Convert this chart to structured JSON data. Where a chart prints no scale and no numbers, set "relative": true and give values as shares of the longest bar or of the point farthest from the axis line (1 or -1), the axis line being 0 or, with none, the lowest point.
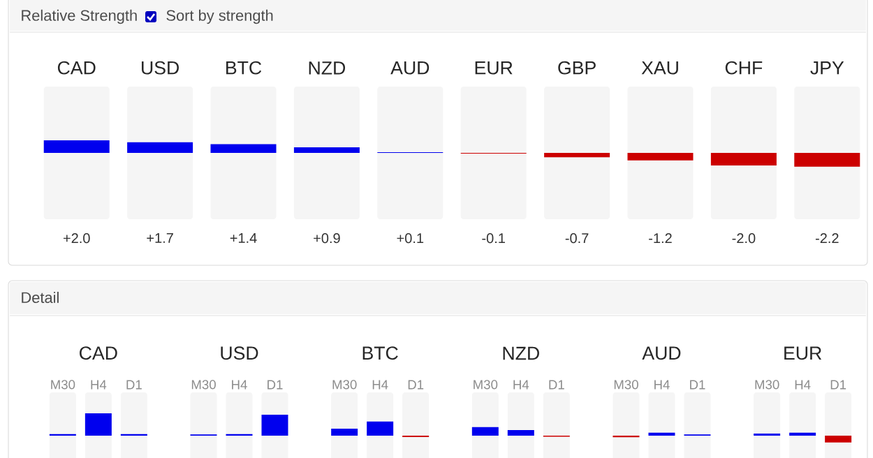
{
  "chart_data": [
    {
      "type": "bar",
      "title": "Relative Strength",
      "annotations": [
        "Sort by strength"
      ],
      "categories": [
        "CAD",
        "USD",
        "BTC",
        "NZD",
        "AUD",
        "EUR",
        "GBP",
        "XAU",
        "CHF",
        "JPY"
      ],
      "values": [
        2.0,
        1.7,
        1.4,
        0.9,
        0.1,
        -0.1,
        -0.7,
        -1.2,
        -2.0,
        -2.2
      ],
      "colors": [
        "#0000ee",
        "#0000ee",
        "#0000ee",
        "#0000ee",
        "#0000ee",
        "#cc0000",
        "#cc0000",
        "#cc0000",
        "#cc0000",
        "#cc0000"
      ],
      "value_labels": [
        "+2.0",
        "+1.7",
        "+1.4",
        "+0.9",
        "+0.1",
        "-0.1",
        "-0.7",
        "-1.2",
        "-2.0",
        "-2.2"
      ]
    },
    {
      "type": "bar",
      "title": "Detail",
      "relative": true,
      "categories": [
        "CAD",
        "USD",
        "BTC",
        "NZD",
        "AUD",
        "EUR"
      ],
      "series": [
        {
          "name": "M30",
          "colors": [
            "#0000ee",
            "#0000ee",
            "#0000ee",
            "#0000ee",
            "#cc0000",
            "#0000ee"
          ],
          "values": [
            0.07,
            0.05,
            0.31,
            0.38,
            -0.07,
            0.09
          ]
        },
        {
          "name": "H4",
          "colors": [
            "#0000ee",
            "#0000ee",
            "#0000ee",
            "#0000ee",
            "#0000ee",
            "#0000ee"
          ],
          "values": [
            1,
            0.07,
            0.63,
            0.25,
            0.13,
            0.13
          ]
        },
        {
          "name": "D1",
          "colors": [
            "#0000ee",
            "#0000ee",
            "#cc0000",
            "#cc0000",
            "#0000ee",
            "#cc0000"
          ],
          "values": [
            0.07,
            0.94,
            -0.06,
            -0.05,
            0.05,
            -0.31
          ]
        }
      ]
    }
  ]
}
